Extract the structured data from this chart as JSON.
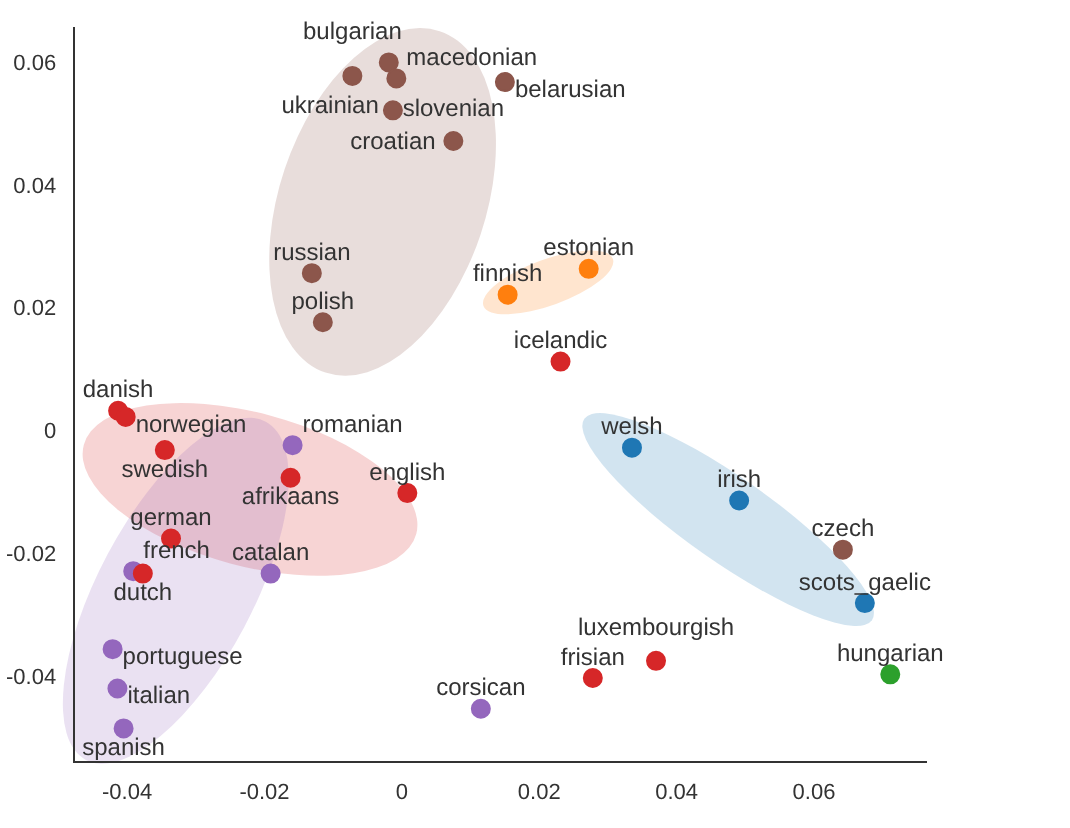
{
  "chart_data": {
    "type": "scatter",
    "marker": "circle",
    "grid": false,
    "legend": false,
    "xlim": [
      -0.0477,
      0.0763
    ],
    "ylim": [
      -0.0536,
      0.0658
    ],
    "xticks": [
      -0.04,
      -0.02,
      0,
      0.02,
      0.04,
      0.06
    ],
    "yticks": [
      -0.04,
      -0.02,
      0,
      0.02,
      0.04,
      0.06
    ],
    "series": [
      {
        "color": "#8c564b",
        "x": [
          -0.0072,
          -0.0019,
          -0.0008,
          -0.0013,
          0.0075,
          0.015,
          -0.0131,
          -0.0115,
          0.0642
        ],
        "values": [
          0.058,
          0.0602,
          0.0576,
          0.0524,
          0.0474,
          0.057,
          0.0259,
          0.0179,
          -0.0191
        ],
        "value_labels": [
          "bulgarian",
          "ukrainian",
          "macedonian",
          "croatian",
          "slovenian",
          "belarusian",
          "russian",
          "polish",
          "czech"
        ]
      },
      {
        "color": "#ff7f0e",
        "x": [
          0.0154,
          0.0272
        ],
        "values": [
          0.0224,
          0.0266
        ],
        "value_labels": [
          "finnish",
          "estonian"
        ]
      },
      {
        "color": "#d62728",
        "x": [
          0.0231,
          -0.0413,
          -0.0402,
          -0.0345,
          -0.0162,
          0.0008,
          -0.0336,
          -0.0377,
          0.0278,
          0.037
        ],
        "values": [
          0.0115,
          0.0035,
          0.0025,
          -0.0029,
          -0.0074,
          -0.0099,
          -0.0173,
          -0.023,
          -0.04,
          -0.0372
        ],
        "value_labels": [
          "icelandic",
          "danish",
          "norwegian",
          "swedish",
          "afrikaans",
          "english",
          "german",
          "dutch",
          "frisian",
          "luxembourgish"
        ]
      },
      {
        "color": "#9467bd",
        "x": [
          -0.0159,
          -0.0391,
          -0.0191,
          -0.0421,
          -0.0414,
          -0.0405,
          0.0115
        ],
        "values": [
          -0.0021,
          -0.0226,
          -0.023,
          -0.0353,
          -0.0417,
          -0.0482,
          -0.045
        ],
        "value_labels": [
          "romanian",
          "french",
          "catalan",
          "portuguese",
          "italian",
          "spanish",
          "corsican"
        ]
      },
      {
        "color": "#1f77b4",
        "x": [
          0.0335,
          0.0491,
          0.0674
        ],
        "values": [
          -0.0025,
          -0.0111,
          -0.0278
        ],
        "value_labels": [
          "welsh",
          "irish",
          "scots_gaelic"
        ]
      },
      {
        "color": "#2ca02c",
        "x": [
          0.0711
        ],
        "values": [
          -0.0394
        ],
        "value_labels": [
          "hungarian"
        ]
      }
    ]
  }
}
